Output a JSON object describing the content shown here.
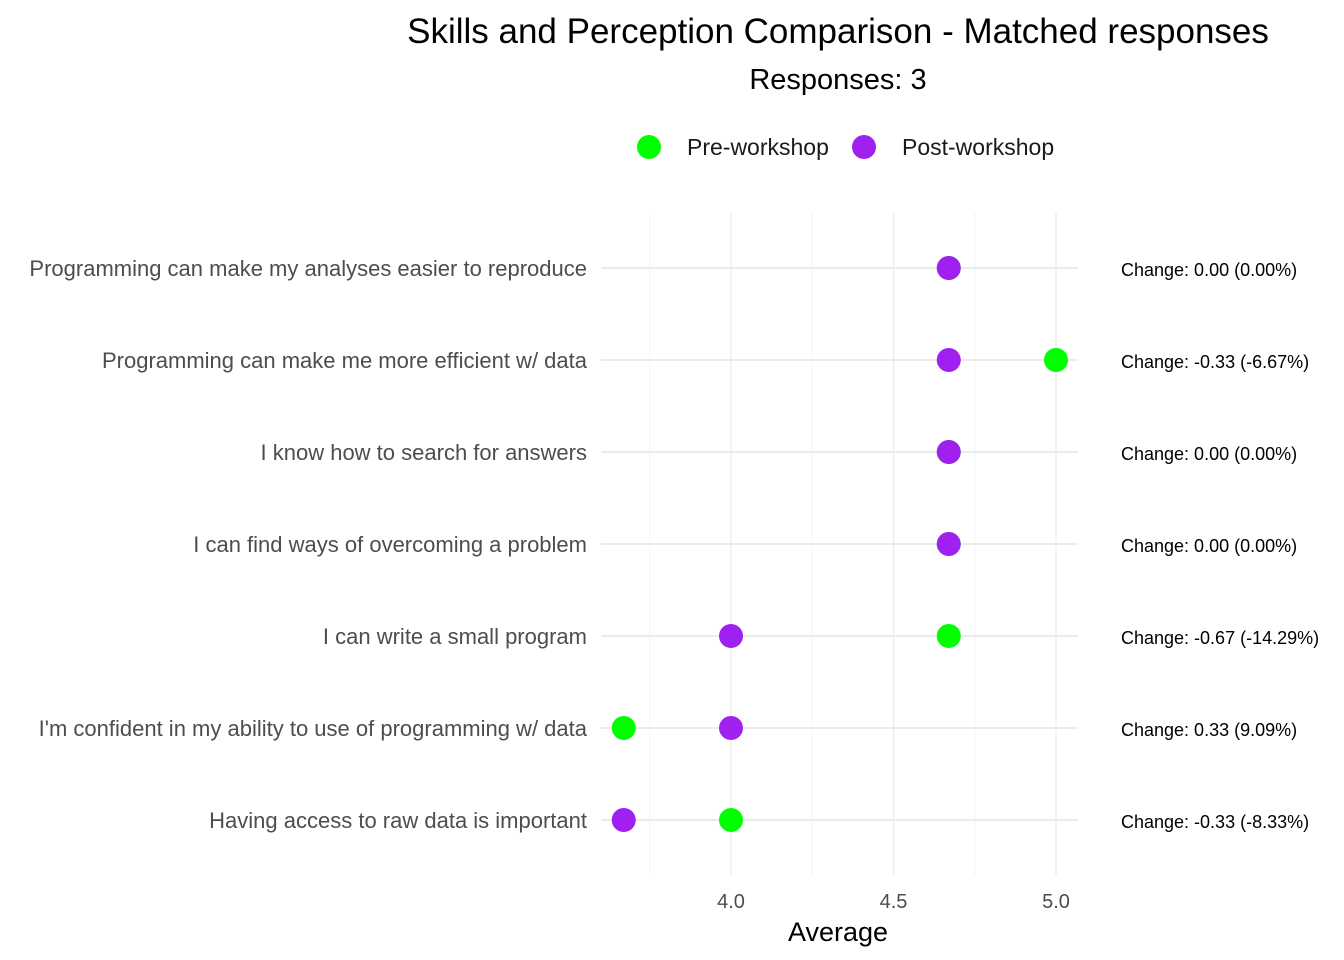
{
  "chart_data": {
    "type": "scatter",
    "title": "Skills and Perception Comparison - Matched responses",
    "subtitle": "Responses: 3",
    "xlabel": "Average",
    "ylabel": "",
    "xlim": [
      3.6,
      5.07
    ],
    "xticks": [
      4.0,
      4.5,
      5.0
    ],
    "x_tick_labels": [
      "4.0",
      "4.5",
      "5.0"
    ],
    "grid": true,
    "legend_position": "top",
    "categories": [
      "Programming can make my analyses easier to reproduce",
      "Programming can make me more efficient w/ data",
      "I know how to search for answers",
      "I can find ways of overcoming a problem",
      "I can write a small program",
      "I'm confident in my ability to use of programming w/ data",
      "Having access to raw data is important"
    ],
    "series": [
      {
        "name": "Pre-workshop",
        "color": "#00ff00",
        "values": [
          4.67,
          5.0,
          4.67,
          4.67,
          4.67,
          3.67,
          4.0
        ]
      },
      {
        "name": "Post-workshop",
        "color": "#a020f0",
        "values": [
          4.67,
          4.67,
          4.67,
          4.67,
          4.0,
          4.0,
          3.67
        ]
      }
    ],
    "annotations": [
      "Change: 0.00 (0.00%)",
      "Change: -0.33 (-6.67%)",
      "Change: 0.00 (0.00%)",
      "Change: 0.00 (0.00%)",
      "Change: -0.67 (-14.29%)",
      "Change: 0.33 (9.09%)",
      "Change: -0.33 (-8.33%)"
    ]
  }
}
